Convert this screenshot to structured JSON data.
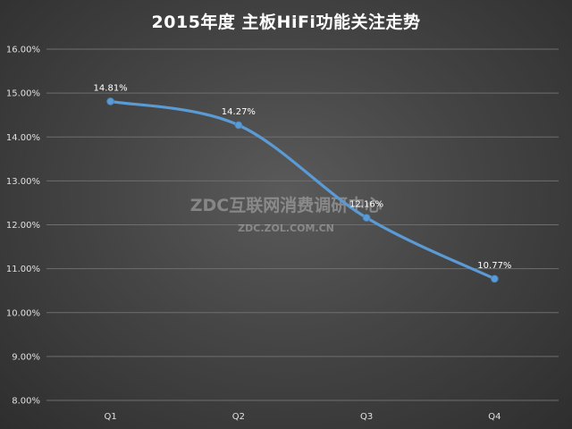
{
  "chart_data": {
    "type": "line",
    "title": "2015年度 主板HiFi功能关注走势",
    "categories": [
      "Q1",
      "Q2",
      "Q3",
      "Q4"
    ],
    "series": [
      {
        "values": [
          14.81,
          14.27,
          12.16,
          10.77
        ],
        "labels": [
          "14.81%",
          "14.27%",
          "12.16%",
          "10.77%"
        ],
        "color": "#5b9bd5"
      }
    ],
    "ylim": [
      8,
      16
    ],
    "yticks": [
      8,
      9,
      10,
      11,
      12,
      13,
      14,
      15,
      16
    ],
    "ytick_labels": [
      "8.00%",
      "9.00%",
      "10.00%",
      "11.00%",
      "12.00%",
      "13.00%",
      "14.00%",
      "15.00%",
      "16.00%"
    ],
    "grid": true,
    "legend": "none",
    "smooth": true
  },
  "watermark": {
    "main": "ZDC互联网消费调研中心",
    "sub": "ZDC.ZOL.COM.CN"
  }
}
